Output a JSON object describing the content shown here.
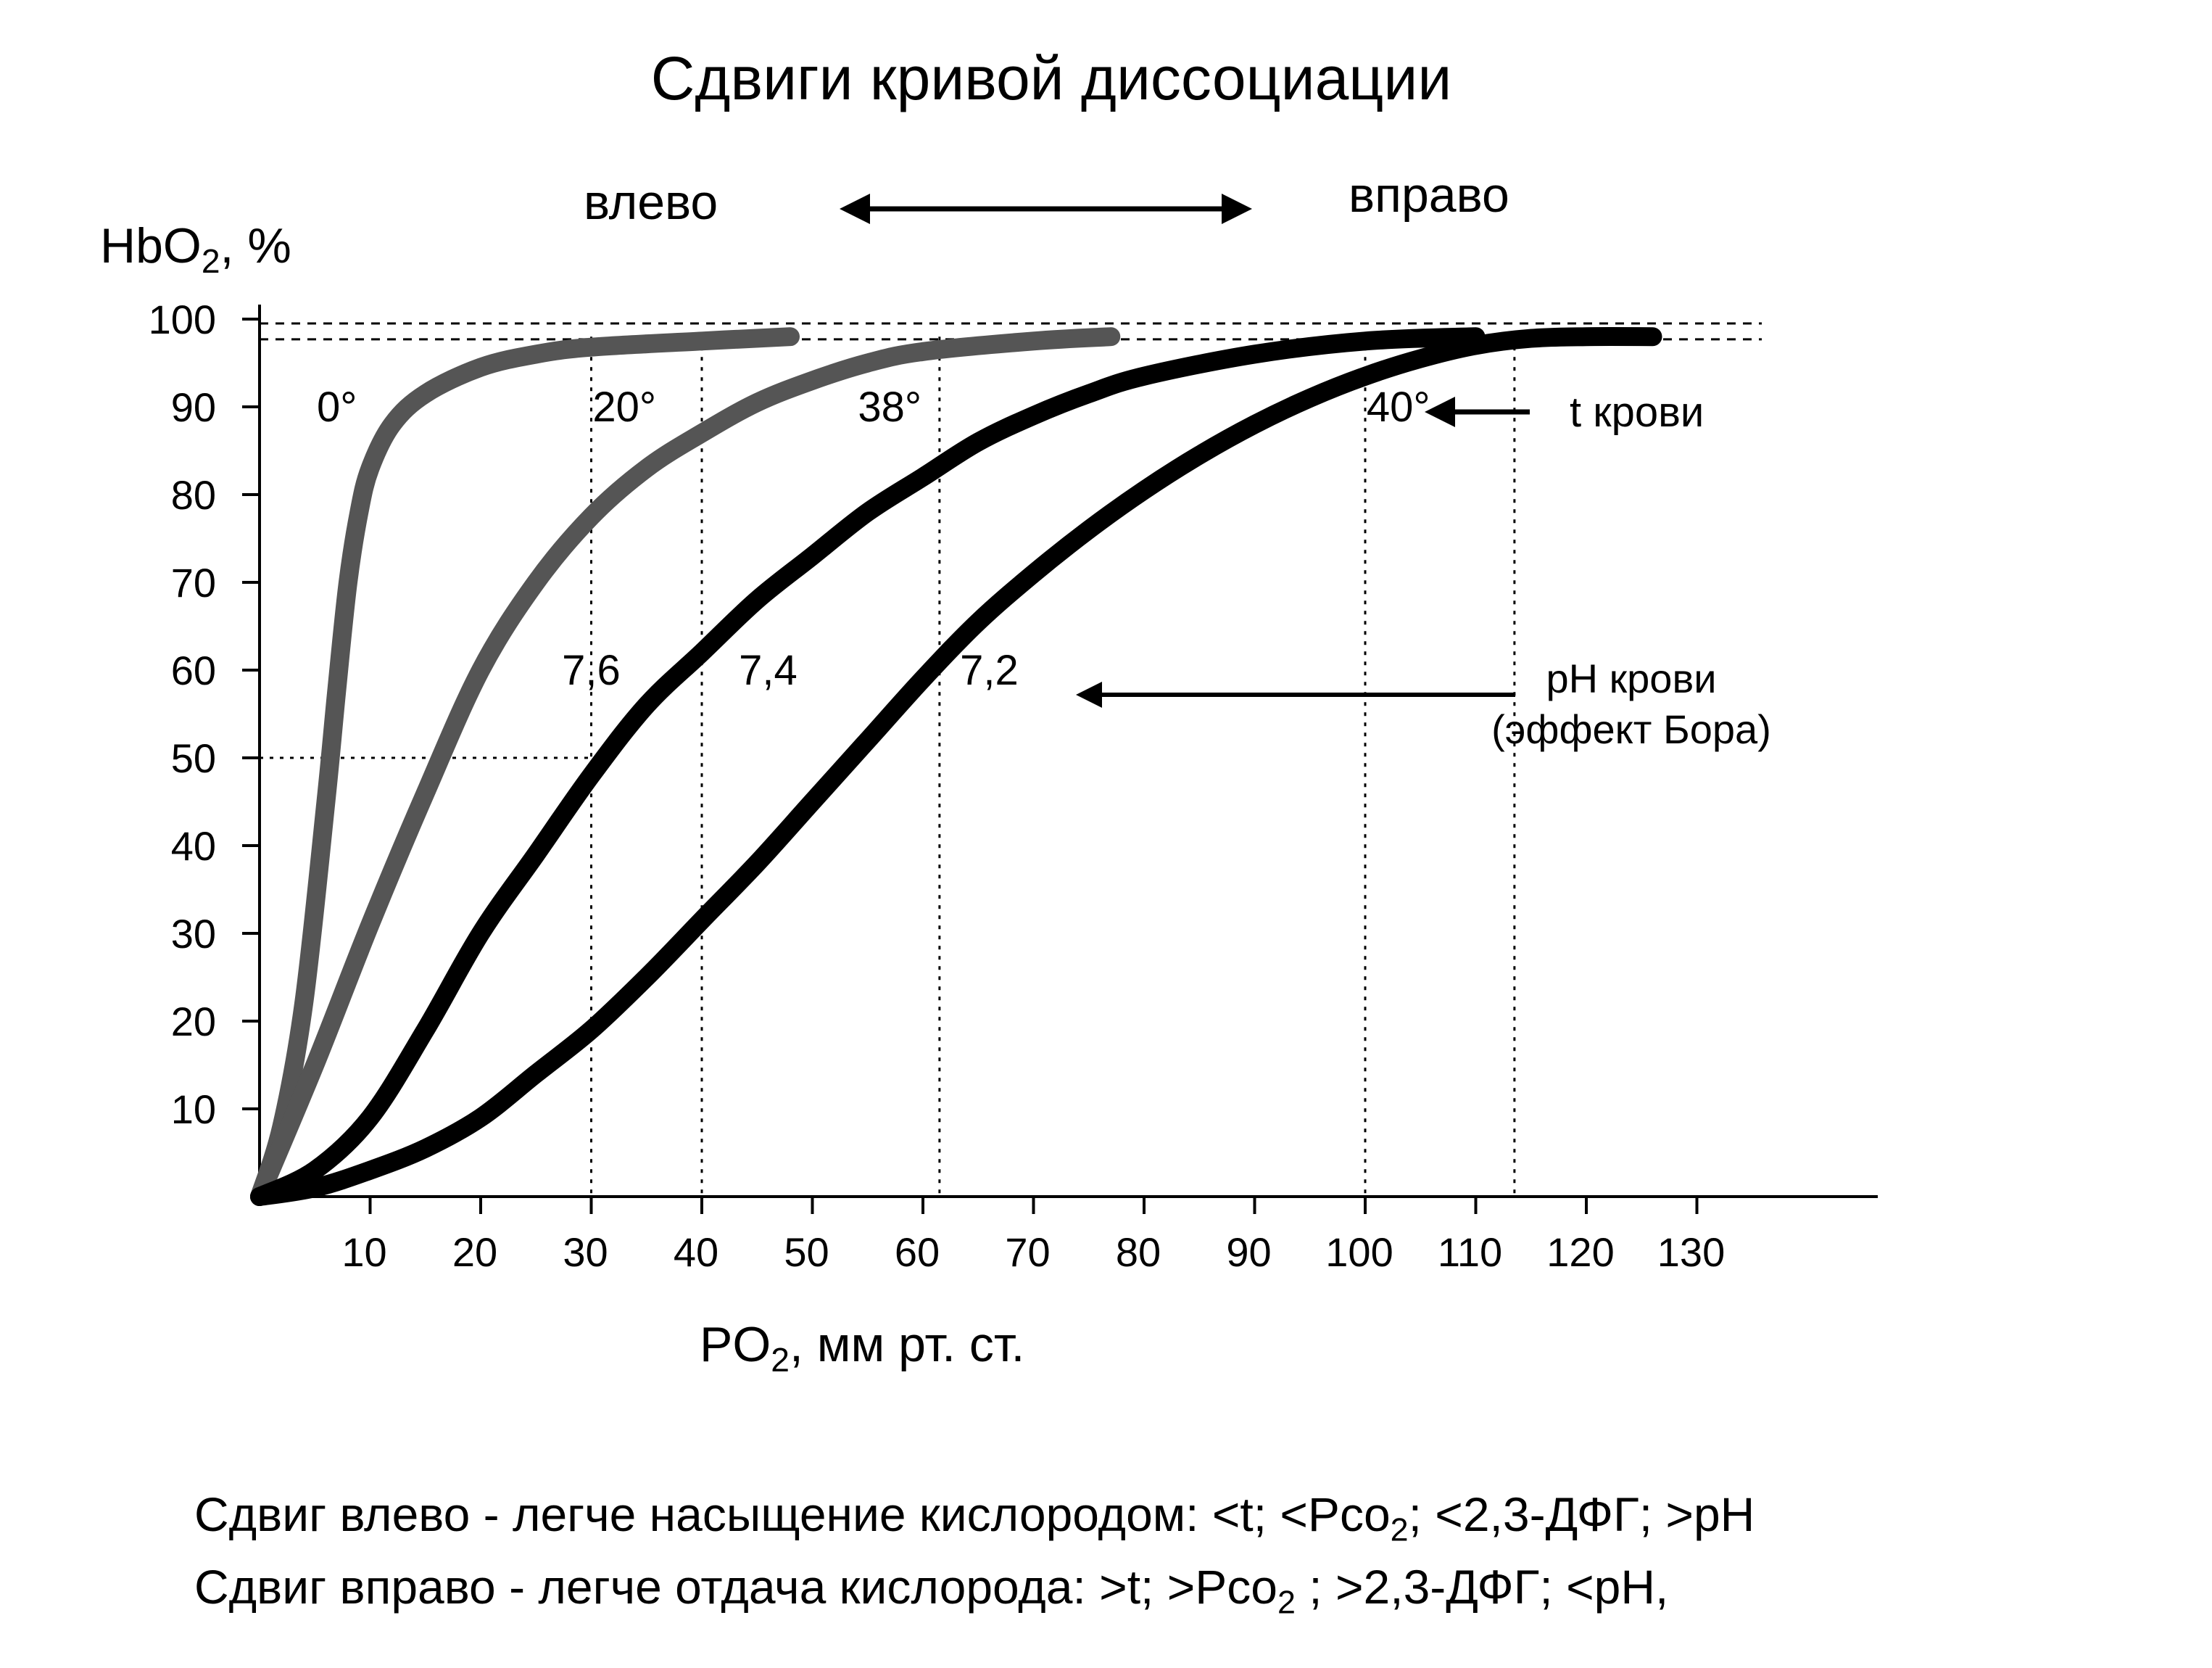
{
  "header": {
    "title": "Сдвиги кривой диссоциации",
    "shift_left": "влево",
    "shift_right": "вправо"
  },
  "axes": {
    "ylabel_main": "HbO",
    "ylabel_sub": "2",
    "ylabel_tail": ", %",
    "xlabel_main": "PO",
    "xlabel_sub": "2",
    "xlabel_tail": ", мм рт. ст."
  },
  "annotations": {
    "temperature_label": "t крови",
    "ph_label_line1": "pH крови",
    "ph_label_line2": "(эффект Бора)"
  },
  "notes": {
    "left_a": "Сдвиг влево - легче насыщение кислородом: <t; <Pco",
    "left_sub": "2",
    "left_b": "; <2,3-ДФГ; >pH",
    "right_a": "Сдвиг вправо - легче отдача кислорода: >t; >Pco",
    "right_sub": "2",
    "right_b": " ; >2,3-ДФГ; <pH,"
  },
  "chart_data": {
    "type": "line",
    "xlabel": "PO2, мм рт. ст.",
    "ylabel": "HbO2, %",
    "xlim": [
      0,
      148
    ],
    "ylim": [
      0,
      100
    ],
    "x_ticks": [
      10,
      20,
      30,
      40,
      50,
      60,
      70,
      80,
      90,
      100,
      110,
      120,
      130
    ],
    "y_ticks": [
      10,
      20,
      30,
      40,
      50,
      60,
      70,
      80,
      90,
      100
    ],
    "series": [
      {
        "name": "0°",
        "color": "#555555",
        "x": [
          0,
          2,
          4,
          6,
          7,
          8,
          9,
          10,
          12,
          15,
          20,
          25,
          30,
          40,
          48
        ],
        "y": [
          0,
          8,
          22,
          45,
          58,
          70,
          78,
          83,
          88,
          91.5,
          94.5,
          96,
          96.8,
          97.5,
          98
        ]
      },
      {
        "name": "20°",
        "color": "#555555",
        "x": [
          0,
          5,
          10,
          15,
          20,
          25,
          30,
          35,
          40,
          45,
          50,
          55,
          60,
          70,
          77
        ],
        "y": [
          0,
          15,
          31,
          46,
          60,
          70,
          77.5,
          83,
          87,
          90.5,
          93,
          95,
          96.3,
          97.5,
          98
        ]
      },
      {
        "name": "38°",
        "color": "#000000",
        "x": [
          0,
          5,
          10,
          15,
          20,
          25,
          30,
          35,
          40,
          45,
          50,
          55,
          60,
          65,
          70,
          75,
          80,
          90,
          100,
          110
        ],
        "y": [
          0,
          3,
          9,
          19,
          30,
          39,
          48,
          56,
          62,
          68,
          73,
          78,
          82,
          86,
          89,
          91.5,
          93.5,
          96,
          97.5,
          98
        ]
      },
      {
        "name": "40°",
        "color": "#000000",
        "x": [
          0,
          5,
          10,
          15,
          20,
          25,
          30,
          35,
          40,
          45,
          50,
          55,
          60,
          65,
          70,
          75,
          80,
          85,
          90,
          95,
          100,
          105,
          110,
          115,
          120,
          126
        ],
        "y": [
          0,
          1,
          3,
          5.5,
          9,
          14,
          19,
          25,
          31.5,
          38,
          45,
          52,
          59,
          65.5,
          71,
          76,
          80.5,
          84.5,
          88,
          91,
          93.5,
          95.5,
          97,
          97.8,
          98,
          98
        ]
      }
    ],
    "curve_labels": [
      {
        "text": "0°",
        "x": 7,
        "y": 90
      },
      {
        "text": "20°",
        "x": 33,
        "y": 90
      },
      {
        "text": "38°",
        "x": 57,
        "y": 90
      },
      {
        "text": "40°",
        "x": 103,
        "y": 90
      },
      {
        "text": "7,6",
        "x": 30,
        "y": 60
      },
      {
        "text": "7,4",
        "x": 46,
        "y": 60
      },
      {
        "text": "7,2",
        "x": 66,
        "y": 60
      }
    ],
    "reference_lines": {
      "vertical_x": [
        30,
        40,
        61.5,
        100,
        113.5
      ],
      "horizontal_y": [
        50
      ],
      "top_y": [
        99.5,
        97.7
      ]
    }
  }
}
